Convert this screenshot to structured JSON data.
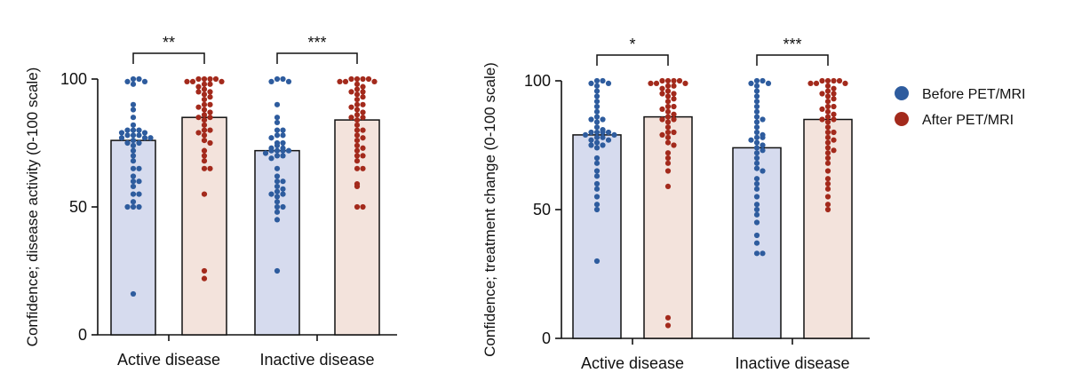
{
  "legend": {
    "items": [
      {
        "label": "Before PET/MRI",
        "color": "#2E5C9E"
      },
      {
        "label": "After PET/MRI",
        "color": "#A32A1C"
      }
    ]
  },
  "chart_data": [
    {
      "type": "bar",
      "ylabel": "Confidence; disease activity (0-100 scale)",
      "xlabel": "",
      "ylim": [
        0,
        100
      ],
      "yticks": [
        0,
        50,
        100
      ],
      "categories": [
        "Active disease",
        "Inactive disease"
      ],
      "series": [
        {
          "name": "Before PET/MRI",
          "values": [
            76,
            72
          ],
          "points": [
            [
              100,
              100,
              99,
              99,
              98,
              90,
              88,
              85,
              82,
              80,
              80,
              80,
              79,
              79,
              78,
              78,
              78,
              77,
              77,
              77,
              76,
              75,
              75,
              74,
              72,
              70,
              68,
              65,
              65,
              62,
              60,
              60,
              58,
              55,
              55,
              52,
              50,
              50,
              50,
              16
            ],
            [
              100,
              100,
              99,
              99,
              90,
              85,
              83,
              80,
              80,
              78,
              78,
              77,
              75,
              75,
              74,
              73,
              73,
              72,
              72,
              72,
              72,
              71,
              70,
              70,
              69,
              65,
              62,
              60,
              60,
              58,
              57,
              56,
              55,
              55,
              54,
              52,
              50,
              50,
              48,
              45,
              25
            ]
          ]
        },
        {
          "name": "After PET/MRI",
          "values": [
            85,
            84
          ],
          "points": [
            [
              100,
              100,
              100,
              100,
              99,
              99,
              99,
              98,
              98,
              97,
              96,
              95,
              95,
              94,
              93,
              92,
              90,
              90,
              89,
              88,
              87,
              86,
              85,
              85,
              84,
              82,
              80,
              80,
              79,
              78,
              76,
              75,
              72,
              70,
              68,
              65,
              65,
              55,
              25,
              22
            ],
            [
              100,
              100,
              100,
              100,
              99,
              99,
              99,
              98,
              97,
              96,
              95,
              95,
              94,
              93,
              92,
              90,
              90,
              89,
              88,
              87,
              86,
              85,
              85,
              84,
              82,
              80,
              80,
              78,
              77,
              76,
              74,
              73,
              72,
              70,
              70,
              68,
              65,
              65,
              59,
              58,
              50,
              50
            ]
          ]
        }
      ],
      "significance": [
        "**",
        "***"
      ]
    },
    {
      "type": "bar",
      "ylabel": "Confidence; treatment change (0-100 scale)",
      "xlabel": "",
      "ylim": [
        0,
        100
      ],
      "yticks": [
        0,
        50,
        100
      ],
      "categories": [
        "Active disease",
        "Inactive disease"
      ],
      "series": [
        {
          "name": "Before PET/MRI",
          "values": [
            79,
            74
          ],
          "points": [
            [
              100,
              100,
              99,
              99,
              98,
              96,
              94,
              92,
              90,
              88,
              86,
              85,
              85,
              84,
              82,
              81,
              80,
              80,
              80,
              80,
              79,
              79,
              78,
              78,
              77,
              77,
              76,
              75,
              75,
              74,
              70,
              68,
              65,
              63,
              60,
              58,
              55,
              52,
              50,
              30
            ],
            [
              100,
              100,
              99,
              99,
              98,
              96,
              94,
              92,
              90,
              88,
              86,
              85,
              84,
              82,
              80,
              79,
              78,
              78,
              77,
              76,
              75,
              74,
              73,
              72,
              70,
              68,
              66,
              65,
              62,
              60,
              58,
              55,
              52,
              50,
              48,
              45,
              40,
              37,
              33,
              33
            ]
          ]
        },
        {
          "name": "After PET/MRI",
          "values": [
            86,
            85
          ],
          "points": [
            [
              100,
              100,
              100,
              100,
              99,
              99,
              99,
              98,
              98,
              97,
              96,
              95,
              95,
              94,
              93,
              92,
              90,
              90,
              89,
              88,
              87,
              86,
              85,
              85,
              84,
              82,
              80,
              80,
              79,
              78,
              76,
              75,
              72,
              70,
              68,
              65,
              59,
              8,
              5
            ],
            [
              100,
              100,
              100,
              100,
              99,
              99,
              99,
              98,
              97,
              96,
              95,
              95,
              94,
              93,
              92,
              90,
              90,
              89,
              88,
              87,
              86,
              85,
              85,
              84,
              82,
              80,
              80,
              78,
              77,
              76,
              74,
              73,
              72,
              70,
              68,
              65,
              62,
              60,
              58,
              55,
              52,
              50
            ]
          ]
        }
      ],
      "significance": [
        "*",
        "***"
      ]
    }
  ]
}
